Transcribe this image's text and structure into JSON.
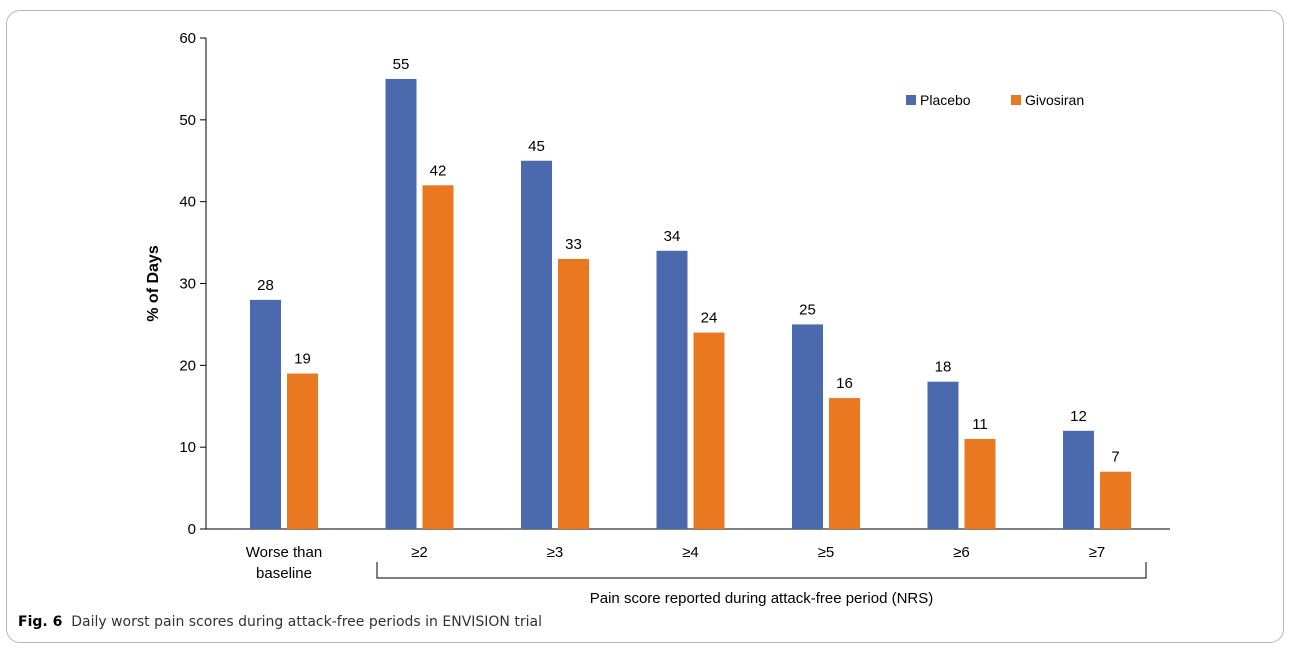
{
  "chart_data": {
    "type": "bar",
    "ylabel": "% of  Days",
    "xgroup_label": "Pain score reported during attack-free period (NRS)",
    "ylim": [
      0,
      60
    ],
    "yticks": [
      0,
      10,
      20,
      30,
      40,
      50,
      60
    ],
    "categories": [
      [
        "Worse than",
        "baseline"
      ],
      [
        "≥2"
      ],
      [
        "≥3"
      ],
      [
        "≥4"
      ],
      [
        "≥5"
      ],
      [
        "≥6"
      ],
      [
        "≥7"
      ]
    ],
    "series": [
      {
        "name": "Placebo",
        "color": "#4a6aad",
        "values": [
          28,
          55,
          45,
          34,
          25,
          18,
          12
        ]
      },
      {
        "name": "Givosiran",
        "color": "#e97820",
        "values": [
          19,
          42,
          33,
          24,
          16,
          11,
          7
        ]
      }
    ],
    "legend_position": "top-right",
    "grid": false
  },
  "caption": {
    "label": "Fig. 6",
    "text": "Daily worst pain scores during attack-free periods in ENVISION trial"
  }
}
